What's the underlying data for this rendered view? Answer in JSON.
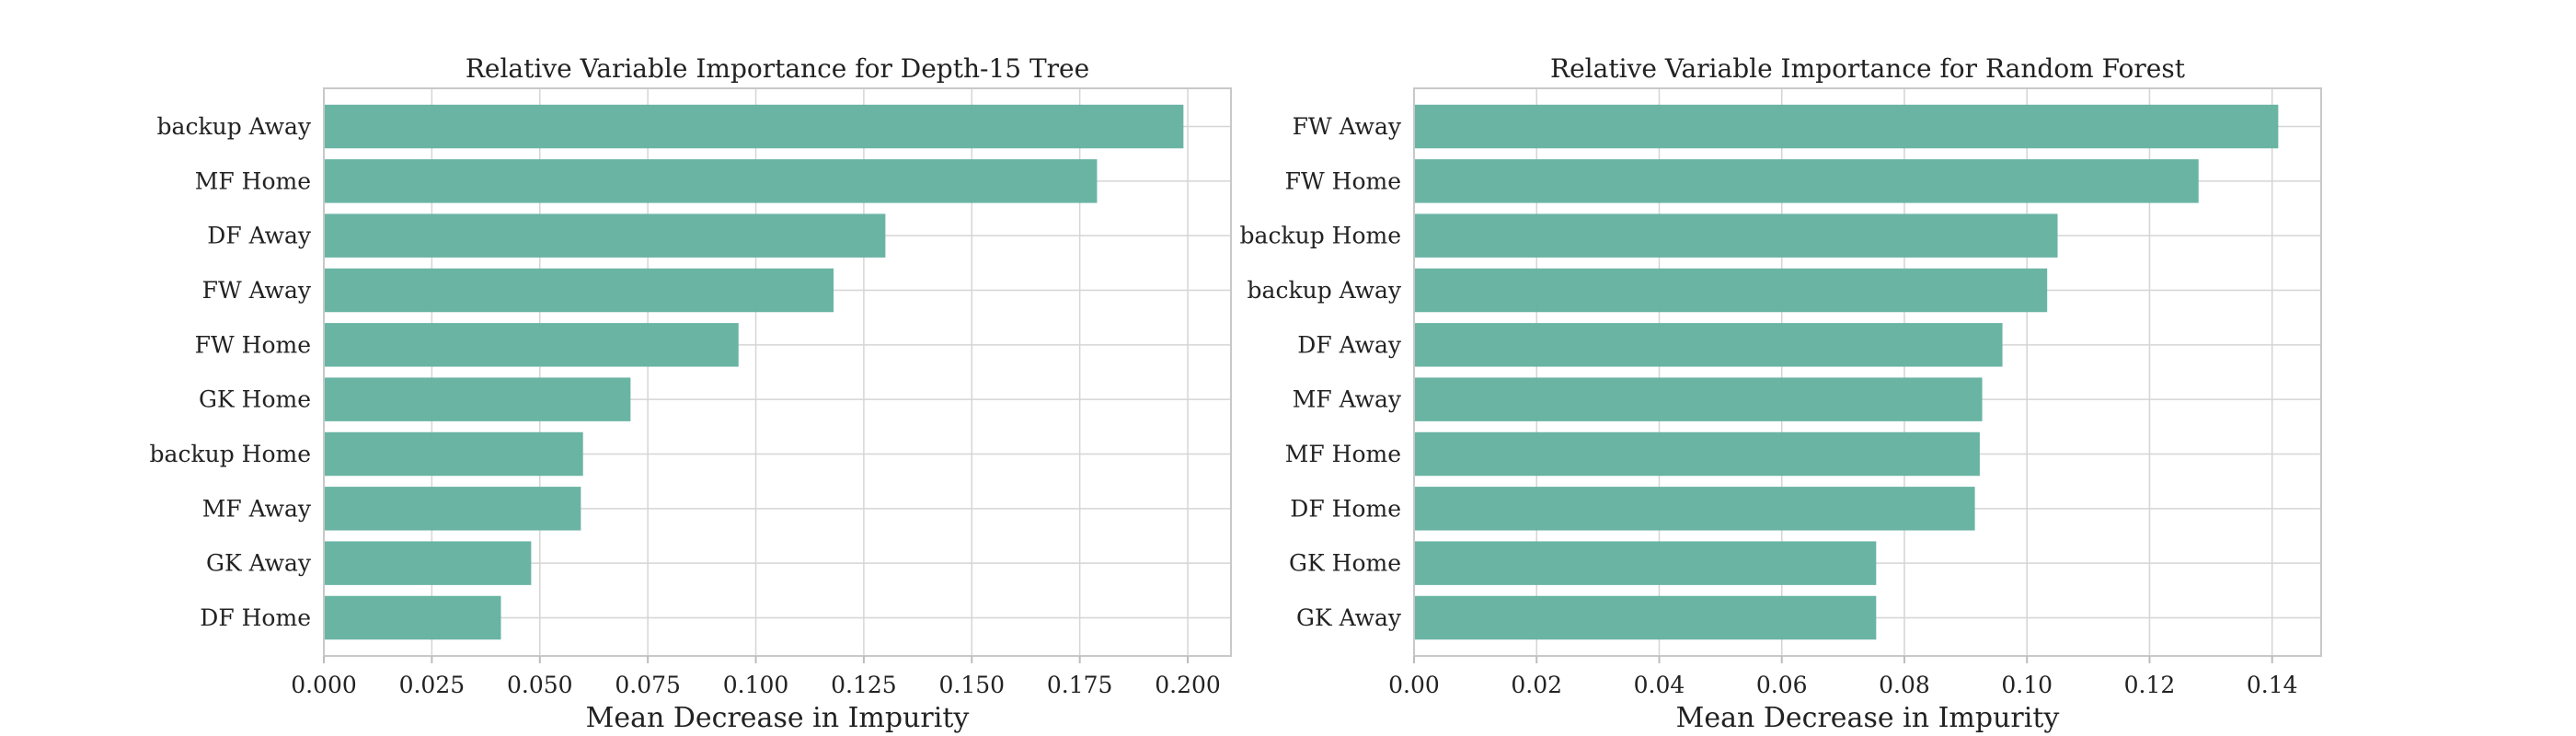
{
  "chart_data": [
    {
      "type": "bar",
      "orientation": "horizontal",
      "title": "Relative Variable Importance for Depth-15 Tree",
      "xlabel": "Mean Decrease in Impurity",
      "ylabel": "",
      "xlim": [
        0,
        0.21
      ],
      "xticks": [
        0.0,
        0.025,
        0.05,
        0.075,
        0.1,
        0.125,
        0.15,
        0.175,
        0.2
      ],
      "xtick_labels": [
        "0.000",
        "0.025",
        "0.050",
        "0.075",
        "0.100",
        "0.125",
        "0.150",
        "0.175",
        "0.200"
      ],
      "grid": true,
      "categories": [
        "backup Away",
        "MF Home",
        "DF Away",
        "FW Away",
        "FW Home",
        "GK Home",
        "backup Home",
        "MF Away",
        "GK Away",
        "DF Home"
      ],
      "values": [
        0.199,
        0.179,
        0.13,
        0.118,
        0.096,
        0.071,
        0.06,
        0.0595,
        0.048,
        0.041
      ],
      "bar_color": "#67b2a2"
    },
    {
      "type": "bar",
      "orientation": "horizontal",
      "title": "Relative Variable Importance for Random Forest",
      "xlabel": "Mean Decrease in Impurity",
      "ylabel": "",
      "xlim": [
        0,
        0.148
      ],
      "xticks": [
        0.0,
        0.02,
        0.04,
        0.06,
        0.08,
        0.1,
        0.12,
        0.14
      ],
      "xtick_labels": [
        "0.00",
        "0.02",
        "0.04",
        "0.06",
        "0.08",
        "0.10",
        "0.12",
        "0.14"
      ],
      "grid": true,
      "categories": [
        "FW Away",
        "FW Home",
        "backup Home",
        "backup Away",
        "DF Away",
        "MF Away",
        "MF Home",
        "DF Home",
        "GK Home",
        "GK Away"
      ],
      "values": [
        0.141,
        0.128,
        0.105,
        0.1033,
        0.096,
        0.0927,
        0.0923,
        0.0915,
        0.0754,
        0.0754
      ],
      "bar_color": "#67b2a2"
    }
  ]
}
